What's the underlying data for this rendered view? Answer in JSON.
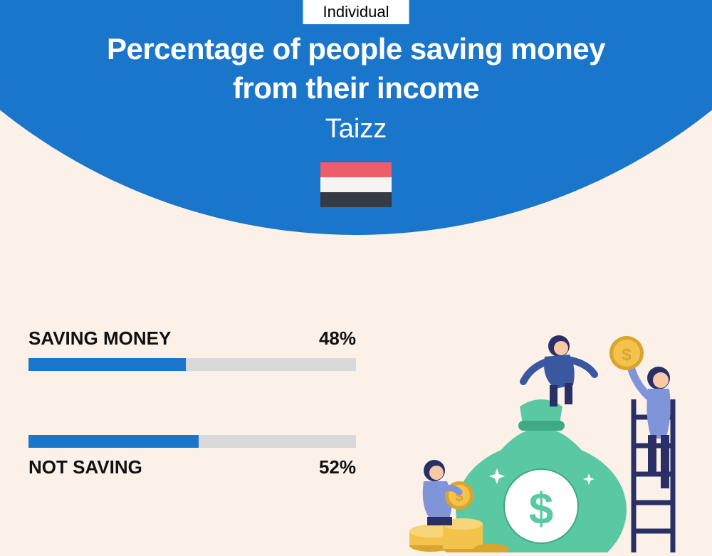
{
  "header": {
    "badge": "Individual",
    "title_line1": "Percentage of people saving money",
    "title_line2": "from their income",
    "subtitle": "Taizz",
    "curve_color": "#1976ca",
    "flag_colors": [
      "#ec5f6a",
      "#f5f4f0",
      "#363a43"
    ]
  },
  "chart": {
    "type": "bar",
    "background_color": "#fbf1e8",
    "bar_track_color": "#d9d9d9",
    "bar_fill_color": "#1976ca",
    "label_color": "#111111",
    "label_fontsize": 26,
    "bars": [
      {
        "label": "SAVING MONEY",
        "value": 48,
        "display": "48%",
        "label_position": "above"
      },
      {
        "label": "NOT SAVING",
        "value": 52,
        "display": "52%",
        "label_position": "below"
      }
    ]
  },
  "illustration": {
    "bag_color": "#5ac9a3",
    "bag_shadow": "#3fa884",
    "coin_color": "#f3c34c",
    "coin_edge": "#d9a52e",
    "ladder_color": "#2a2f66",
    "skin": "#f8c9a6",
    "shirt1": "#3a58a0",
    "shirt2": "#8095d9",
    "pants": "#2a2f66"
  }
}
